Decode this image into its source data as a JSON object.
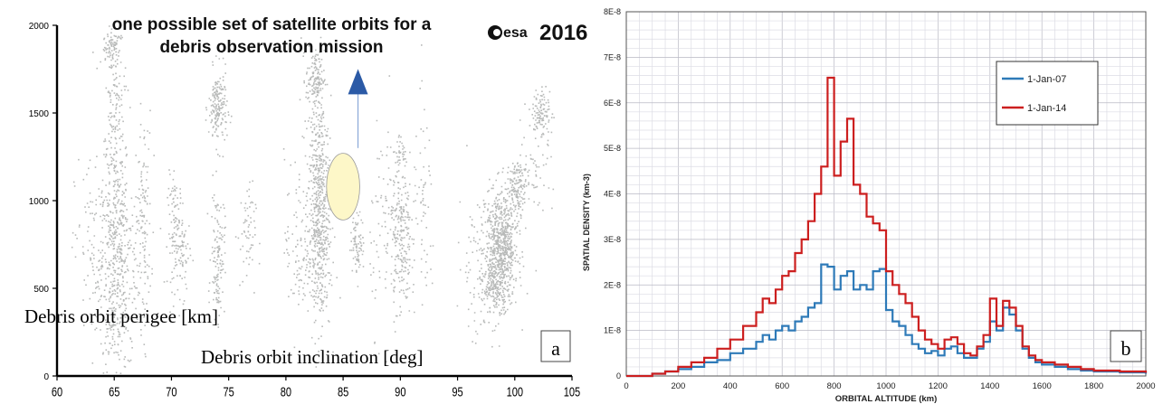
{
  "chart_data": [
    {
      "type": "scatter",
      "title": "one possible set of satellite orbits for a debris observation mission",
      "title_lines": [
        "one possible set of satellite orbits for a",
        "debris observation mission"
      ],
      "logo_text": "esa",
      "year": "2016",
      "xlabel": "Debris orbit inclination [deg]",
      "ylabel": "Debris orbit perigee [km]",
      "panel_label": "a",
      "xlim": [
        60,
        105
      ],
      "ylim": [
        0,
        2000
      ],
      "x_ticks": [
        60,
        65,
        70,
        75,
        80,
        85,
        90,
        95,
        100,
        105
      ],
      "y_ticks": [
        0,
        500,
        1000,
        1500,
        2000
      ],
      "grid": false,
      "clusters": [
        {
          "x": 64.8,
          "y": 1880,
          "spread_x": 0.35,
          "spread_y": 40,
          "n": 60
        },
        {
          "x": 65.0,
          "y": 1100,
          "spread_x": 0.55,
          "spread_y": 650,
          "n": 420
        },
        {
          "x": 65.5,
          "y": 600,
          "spread_x": 0.9,
          "spread_y": 280,
          "n": 260
        },
        {
          "x": 63.5,
          "y": 700,
          "spread_x": 1.0,
          "spread_y": 280,
          "n": 150
        },
        {
          "x": 67.5,
          "y": 900,
          "spread_x": 0.35,
          "spread_y": 300,
          "n": 120
        },
        {
          "x": 70.3,
          "y": 820,
          "spread_x": 0.35,
          "spread_y": 160,
          "n": 110
        },
        {
          "x": 71.0,
          "y": 700,
          "spread_x": 0.3,
          "spread_y": 120,
          "n": 50
        },
        {
          "x": 74.0,
          "y": 1530,
          "spread_x": 0.4,
          "spread_y": 110,
          "n": 180
        },
        {
          "x": 74.0,
          "y": 700,
          "spread_x": 0.3,
          "spread_y": 180,
          "n": 130
        },
        {
          "x": 76.5,
          "y": 800,
          "spread_x": 0.4,
          "spread_y": 150,
          "n": 60
        },
        {
          "x": 82.5,
          "y": 1700,
          "spread_x": 0.4,
          "spread_y": 80,
          "n": 120
        },
        {
          "x": 82.8,
          "y": 1300,
          "spread_x": 0.45,
          "spread_y": 300,
          "n": 220
        },
        {
          "x": 82.9,
          "y": 950,
          "spread_x": 0.45,
          "spread_y": 170,
          "n": 220
        },
        {
          "x": 82.7,
          "y": 650,
          "spread_x": 0.6,
          "spread_y": 200,
          "n": 200
        },
        {
          "x": 81.0,
          "y": 750,
          "spread_x": 0.6,
          "spread_y": 260,
          "n": 90
        },
        {
          "x": 86.2,
          "y": 760,
          "spread_x": 0.3,
          "spread_y": 80,
          "n": 80
        },
        {
          "x": 90.0,
          "y": 1290,
          "spread_x": 0.3,
          "spread_y": 40,
          "n": 30
        },
        {
          "x": 90.0,
          "y": 800,
          "spread_x": 0.45,
          "spread_y": 230,
          "n": 240
        },
        {
          "x": 88.5,
          "y": 900,
          "spread_x": 0.6,
          "spread_y": 300,
          "n": 70
        },
        {
          "x": 92.0,
          "y": 900,
          "spread_x": 0.5,
          "spread_y": 300,
          "n": 60
        },
        {
          "x": 98.8,
          "y": 750,
          "spread_x": 0.7,
          "spread_y": 160,
          "n": 650
        },
        {
          "x": 98.3,
          "y": 520,
          "spread_x": 0.6,
          "spread_y": 70,
          "n": 160
        },
        {
          "x": 100.2,
          "y": 1080,
          "spread_x": 0.4,
          "spread_y": 70,
          "n": 120
        },
        {
          "x": 101.5,
          "y": 1200,
          "spread_x": 0.8,
          "spread_y": 150,
          "n": 60
        },
        {
          "x": 102.3,
          "y": 1500,
          "spread_x": 0.45,
          "spread_y": 80,
          "n": 110
        },
        {
          "x": 97.0,
          "y": 650,
          "spread_x": 1.0,
          "spread_y": 220,
          "n": 120
        }
      ],
      "annotations": [
        {
          "kind": "arrow",
          "x": 86.3,
          "y_from": 1300,
          "y_to": 1720,
          "color": "#2b5aa6"
        },
        {
          "kind": "ellipse",
          "x": 85.0,
          "y": 1080,
          "rx": 1.45,
          "ry": 190,
          "fill": "#fdf7c8",
          "stroke": "#999999"
        }
      ]
    },
    {
      "type": "line",
      "ylabel": "SPATIAL DENSITY  (km-3)",
      "xlabel": "ORBITAL ALTITUDE (km)",
      "panel_label": "b",
      "xlim": [
        0,
        2000
      ],
      "ylim": [
        0,
        8e-08
      ],
      "x_ticks": [
        0,
        200,
        400,
        600,
        800,
        1000,
        1200,
        1400,
        1600,
        1800,
        2000
      ],
      "y_ticks": [
        0,
        1e-08,
        2e-08,
        3e-08,
        4e-08,
        5e-08,
        6e-08,
        7e-08,
        8e-08
      ],
      "y_tick_labels": [
        "0",
        "1E-8",
        "2E-8",
        "3E-8",
        "4E-8",
        "5E-8",
        "6E-8",
        "7E-8",
        "8E-8"
      ],
      "grid": true,
      "legend_position": "top-right",
      "x": [
        0,
        50,
        100,
        150,
        200,
        250,
        300,
        350,
        400,
        450,
        500,
        525,
        550,
        575,
        600,
        625,
        650,
        675,
        700,
        725,
        750,
        775,
        800,
        825,
        850,
        875,
        900,
        925,
        950,
        975,
        1000,
        1025,
        1050,
        1075,
        1100,
        1125,
        1150,
        1175,
        1200,
        1225,
        1250,
        1275,
        1300,
        1325,
        1350,
        1375,
        1400,
        1425,
        1450,
        1475,
        1500,
        1525,
        1550,
        1575,
        1600,
        1650,
        1700,
        1750,
        1800,
        1900,
        2000
      ],
      "series": [
        {
          "name": "1-Jan-07",
          "color": "#2e7ab8",
          "values": [
            0,
            0,
            5e-10,
            1e-09,
            1.5e-09,
            2e-09,
            3e-09,
            3.5e-09,
            5e-09,
            6e-09,
            7.5e-09,
            9e-09,
            8e-09,
            1e-08,
            1.1e-08,
            1e-08,
            1.2e-08,
            1.3e-08,
            1.5e-08,
            1.6e-08,
            2.45e-08,
            2.4e-08,
            1.9e-08,
            2.2e-08,
            2.3e-08,
            1.9e-08,
            2e-08,
            1.9e-08,
            2.3e-08,
            2.35e-08,
            1.45e-08,
            1.2e-08,
            1.1e-08,
            9e-09,
            7e-09,
            6e-09,
            5e-09,
            5.5e-09,
            4.5e-09,
            6e-09,
            6.5e-09,
            5e-09,
            4e-09,
            4e-09,
            6e-09,
            7.5e-09,
            1.2e-08,
            1e-08,
            1.5e-08,
            1.35e-08,
            1e-08,
            6e-09,
            4e-09,
            3e-09,
            2.5e-09,
            2e-09,
            1.5e-09,
            1.2e-09,
            1e-09,
            8e-10,
            5e-10
          ]
        },
        {
          "name": "1-Jan-14",
          "color": "#cc1f1f",
          "values": [
            0,
            0,
            5e-10,
            1e-09,
            2e-09,
            3e-09,
            4e-09,
            6e-09,
            8e-09,
            1.1e-08,
            1.4e-08,
            1.7e-08,
            1.6e-08,
            1.9e-08,
            2.2e-08,
            2.3e-08,
            2.7e-08,
            3e-08,
            3.4e-08,
            4e-08,
            4.6e-08,
            6.55e-08,
            4.4e-08,
            5.15e-08,
            5.65e-08,
            4.2e-08,
            4e-08,
            3.5e-08,
            3.35e-08,
            3.2e-08,
            2.3e-08,
            2e-08,
            1.8e-08,
            1.6e-08,
            1.3e-08,
            1e-08,
            8e-09,
            7e-09,
            6e-09,
            8e-09,
            8.5e-09,
            7e-09,
            5e-09,
            4.5e-09,
            6.5e-09,
            9e-09,
            1.7e-08,
            1.1e-08,
            1.65e-08,
            1.5e-08,
            1.1e-08,
            6.5e-09,
            4.5e-09,
            3.5e-09,
            3e-09,
            2.5e-09,
            2e-09,
            1.5e-09,
            1.2e-09,
            1e-09,
            7e-10
          ]
        }
      ]
    }
  ]
}
